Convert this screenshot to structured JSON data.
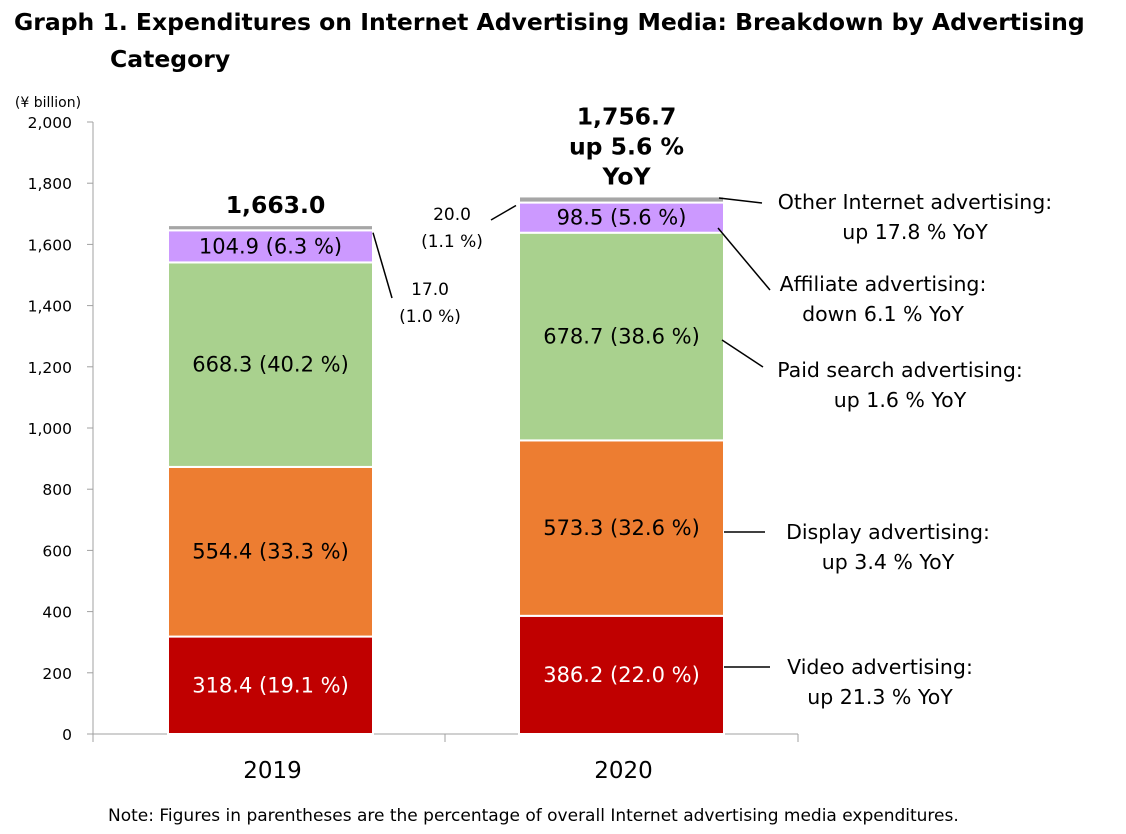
{
  "title": {
    "line1": "Graph 1. Expenditures on Internet Advertising Media: Breakdown by Advertising",
    "line2": "Category"
  },
  "footnote": "Note: Figures in parentheses are the percentage of overall Internet advertising media expenditures.",
  "chart_data": {
    "type": "bar",
    "stacked": true,
    "unit_label": "(¥ billion)",
    "ylim": [
      0,
      2000
    ],
    "ytick_labels": [
      "0",
      "200",
      "400",
      "600",
      "800",
      "1,000",
      "1,200",
      "1,400",
      "1,600",
      "1,800",
      "2,000"
    ],
    "categories": [
      "2019",
      "2020"
    ],
    "grid": false,
    "totals": [
      {
        "lines": [
          "1,663.0"
        ]
      },
      {
        "lines": [
          "1,756.7",
          "up 5.6 %",
          "YoY"
        ]
      }
    ],
    "series": [
      {
        "key": "video",
        "color": "#c00000",
        "text_color": "#ffffff",
        "values": [
          318.4,
          386.2
        ],
        "labels": [
          "318.4 (19.1 %)",
          "386.2 (22.0 %)"
        ],
        "legend": [
          "Video advertising:",
          "up 21.3 % YoY"
        ]
      },
      {
        "key": "display",
        "color": "#ed7d31",
        "text_color": "#000000",
        "values": [
          554.4,
          573.3
        ],
        "labels": [
          "554.4 (33.3 %)",
          "573.3 (32.6 %)"
        ],
        "legend": [
          "Display advertising:",
          "up 3.4 % YoY"
        ]
      },
      {
        "key": "paid-search",
        "color": "#a9d18e",
        "text_color": "#000000",
        "values": [
          668.3,
          678.7
        ],
        "labels": [
          "668.3 (40.2 %)",
          "678.7 (38.6 %)"
        ],
        "legend": [
          "Paid search advertising:",
          "up 1.6 % YoY"
        ]
      },
      {
        "key": "affiliate",
        "color": "#cc99ff",
        "text_color": "#000000",
        "values": [
          104.9,
          98.5
        ],
        "labels": [
          "104.9 (6.3 %)",
          "98.5 (5.6 %)"
        ],
        "legend": [
          "Affiliate advertising:",
          "down 6.1 % YoY"
        ]
      },
      {
        "key": "other",
        "color": "#a6a6a6",
        "text_color": "#000000",
        "values": [
          17.0,
          20.0
        ],
        "labels": [
          [
            "17.0",
            "(1.0 %)"
          ],
          [
            "20.0",
            "(1.1 %)"
          ]
        ],
        "legend": [
          "Other Internet advertising:",
          "up 17.8 % YoY"
        ]
      }
    ]
  }
}
